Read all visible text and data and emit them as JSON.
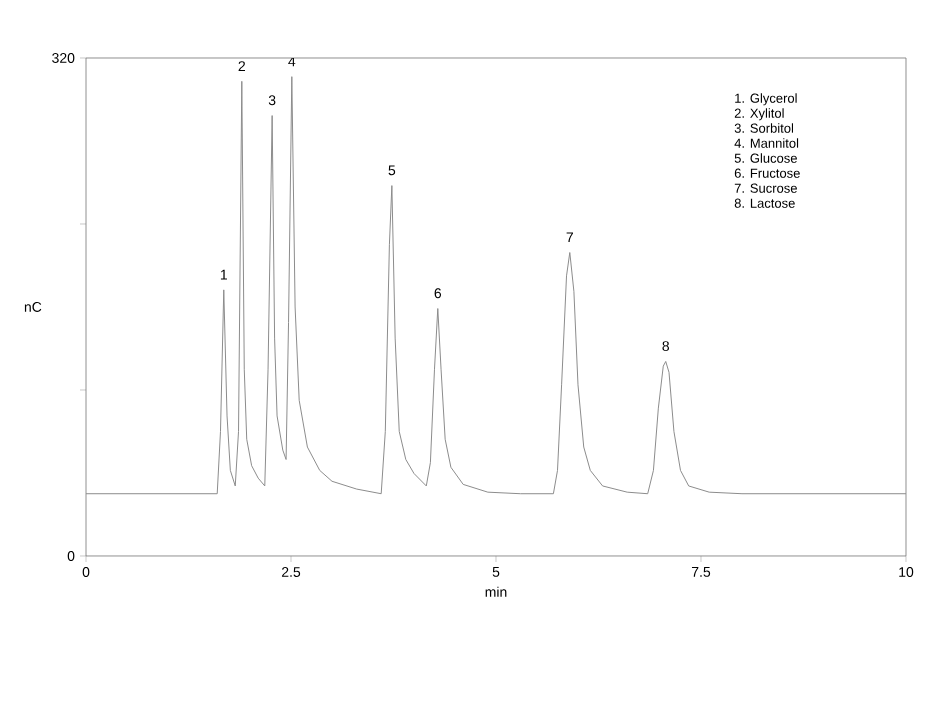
{
  "chart_data": {
    "type": "line",
    "xlabel": "min",
    "ylabel": "nC",
    "xlim": [
      0,
      10
    ],
    "ylim": [
      0,
      320
    ],
    "xticks": [
      0,
      2.5,
      5,
      7.5,
      10
    ],
    "yticks": [
      0,
      {
        "value": 106.67,
        "label": null
      },
      {
        "value": 213.33,
        "label": null
      },
      320
    ],
    "grid": false,
    "marker": "none",
    "line_style": "solid",
    "series": [
      {
        "color": "#8c8c8c",
        "x": [
          0,
          1.6,
          1.64,
          1.68,
          1.72,
          1.76,
          1.82,
          1.86,
          1.9,
          1.93,
          1.96,
          2.02,
          2.1,
          2.18,
          2.22,
          2.27,
          2.3,
          2.33,
          2.4,
          2.44,
          2.47,
          2.51,
          2.55,
          2.6,
          2.7,
          2.85,
          3.0,
          3.3,
          3.6,
          3.65,
          3.7,
          3.73,
          3.77,
          3.82,
          3.9,
          4.0,
          4.15,
          4.2,
          4.25,
          4.29,
          4.33,
          4.38,
          4.45,
          4.6,
          4.9,
          5.3,
          5.7,
          5.75,
          5.8,
          5.86,
          5.9,
          5.95,
          6.0,
          6.07,
          6.15,
          6.3,
          6.6,
          6.85,
          6.92,
          6.98,
          7.04,
          7.07,
          7.11,
          7.17,
          7.25,
          7.35,
          7.6,
          8,
          10
        ],
        "values": [
          40,
          40,
          80,
          171,
          90,
          55,
          45,
          80,
          305,
          120,
          75,
          58,
          50,
          45,
          120,
          283,
          140,
          90,
          68,
          62,
          150,
          308,
          160,
          100,
          70,
          55,
          48,
          43,
          40,
          80,
          200,
          238,
          140,
          80,
          62,
          53,
          45,
          60,
          120,
          159,
          120,
          75,
          57,
          46,
          41,
          40,
          40,
          55,
          110,
          180,
          195,
          170,
          110,
          70,
          55,
          45,
          41,
          40,
          55,
          95,
          122,
          125,
          118,
          80,
          55,
          45,
          41,
          40,
          40
        ]
      }
    ],
    "annotations": [
      {
        "text": "1",
        "x": 1.68,
        "y": 171
      },
      {
        "text": "2",
        "x": 1.9,
        "y": 305
      },
      {
        "text": "3",
        "x": 2.27,
        "y": 283
      },
      {
        "text": "4",
        "x": 2.51,
        "y": 308
      },
      {
        "text": "5",
        "x": 3.73,
        "y": 238
      },
      {
        "text": "6",
        "x": 4.29,
        "y": 159
      },
      {
        "text": "7",
        "x": 5.9,
        "y": 195
      },
      {
        "text": "8",
        "x": 7.07,
        "y": 125
      },
      "1. Glycerol",
      "2. Xylitol",
      "3. Sorbitol",
      "4. Mannitol",
      "5. Glucose",
      "6. Fructose",
      "7. Sucrose",
      "8. Lactose"
    ]
  }
}
